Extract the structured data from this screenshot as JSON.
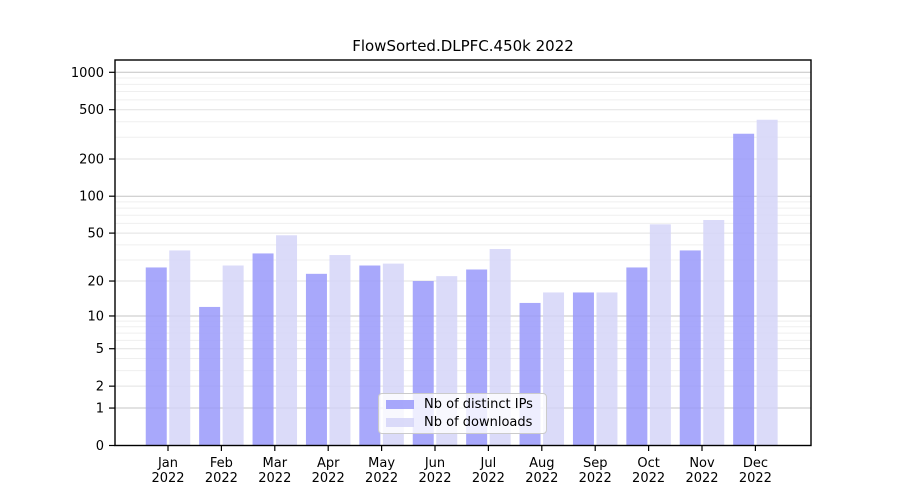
{
  "chart": {
    "title": "FlowSorted.DLPFC.450k 2022",
    "legend": {
      "items": [
        {
          "label": "Nb of distinct IPs",
          "color": "#9999fa"
        },
        {
          "label": "Nb of downloads",
          "color": "#d5d5f8"
        }
      ]
    }
  },
  "chart_data": {
    "type": "bar",
    "title": "FlowSorted.DLPFC.450k 2022",
    "categories": [
      "Jan 2022",
      "Feb 2022",
      "Mar 2022",
      "Apr 2022",
      "May 2022",
      "Jun 2022",
      "Jul 2022",
      "Aug 2022",
      "Sep 2022",
      "Oct 2022",
      "Nov 2022",
      "Dec 2022"
    ],
    "month_labels": [
      "Jan",
      "Feb",
      "Mar",
      "Apr",
      "May",
      "Jun",
      "Jul",
      "Aug",
      "Sep",
      "Oct",
      "Nov",
      "Dec"
    ],
    "year_label": "2022",
    "series": [
      {
        "name": "Nb of distinct IPs",
        "color": "#9999fa",
        "values": [
          26,
          12,
          34,
          23,
          27,
          20,
          25,
          13,
          16,
          26,
          36,
          320
        ]
      },
      {
        "name": "Nb of downloads",
        "color": "#d5d5f8",
        "values": [
          36,
          27,
          48,
          33,
          28,
          22,
          37,
          16,
          16,
          59,
          64,
          415
        ]
      }
    ],
    "yscale": "log1p",
    "yticks": [
      0,
      1,
      2,
      5,
      10,
      20,
      50,
      100,
      200,
      500,
      1000
    ],
    "ylim": [
      0,
      1250
    ],
    "grid": "horizontal",
    "legend_position": "lower center",
    "xlabel": "",
    "ylabel": ""
  }
}
